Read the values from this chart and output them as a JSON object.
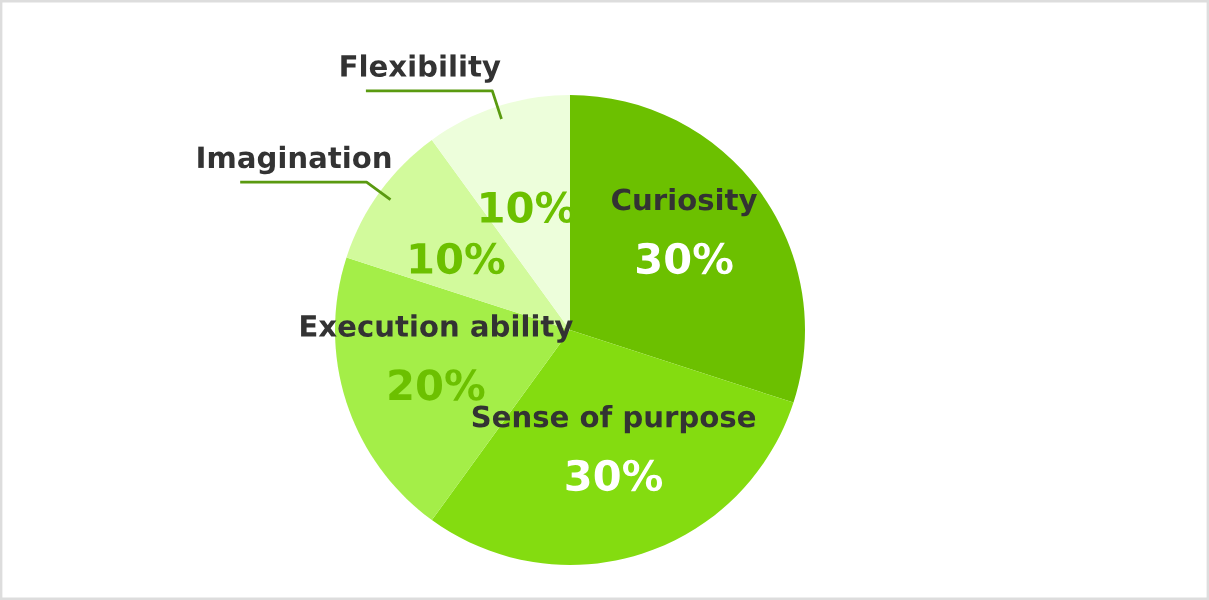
{
  "chart_data": {
    "type": "pie",
    "categories": [
      "Curiosity",
      "Sense of purpose",
      "Execution ability",
      "Imagination",
      "Flexibility"
    ],
    "values": [
      30,
      30,
      20,
      10,
      10
    ],
    "colors": [
      "#6cc000",
      "#84dc10",
      "#a4ee48",
      "#d2fa9c",
      "#edfedb"
    ],
    "value_labels": [
      "30%",
      "30%",
      "20%",
      "10%",
      "10%"
    ]
  }
}
